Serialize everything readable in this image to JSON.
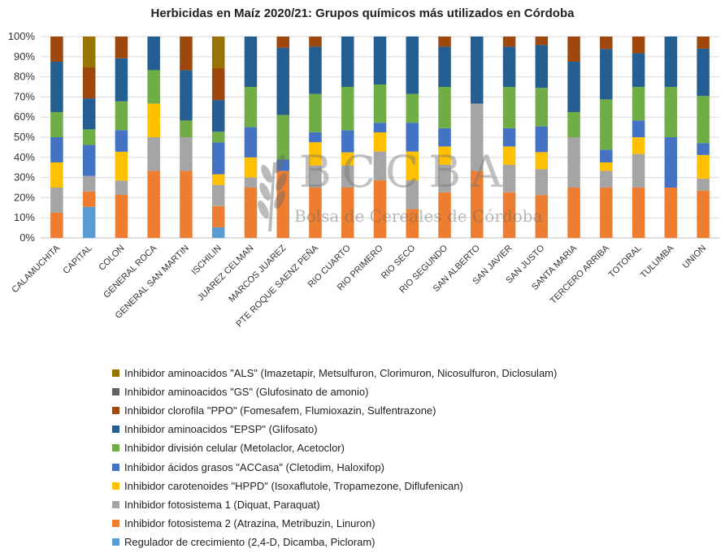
{
  "chart_data": {
    "type": "bar",
    "stacked": true,
    "title": "Herbicidas en Maíz 2020/21: Grupos químicos más utilizados en Córdoba",
    "ylim": [
      0,
      100
    ],
    "yticks": [
      "0%",
      "10%",
      "20%",
      "30%",
      "40%",
      "50%",
      "60%",
      "70%",
      "80%",
      "90%",
      "100%"
    ],
    "categories": [
      "CALAMUCHITA",
      "CAPITAL",
      "COLON",
      "GENERAL ROCA",
      "GENERAL SAN MARTIN",
      "ISCHILIN",
      "JUAREZ CELMAN",
      "MARCOS JUAREZ",
      "PTE ROQUE SAENZ PEÑA",
      "RIO CUARTO",
      "RIO PRIMERO",
      "RIO SECO",
      "RIO SEGUNDO",
      "SAN ALBERTO",
      "SAN JAVIER",
      "SAN JUSTO",
      "SANTA MARIA",
      "TERCERO ARRIBA",
      "TOTORAL",
      "TULUMBA",
      "UNION"
    ],
    "series": [
      {
        "name": "Regulador de crecimiento (2,4-D, Dicamba, Picloram)",
        "color": "#5B9BD5",
        "values": [
          0,
          15.4,
          0,
          0,
          0,
          5.3,
          0,
          0,
          0,
          0,
          0,
          0,
          0,
          0,
          0,
          0,
          0,
          0,
          0,
          0,
          0
        ]
      },
      {
        "name": "Inhibidor fotosistema 2 (Atrazina, Metribuzin, Linuron)",
        "color": "#ED7D31",
        "values": [
          12.5,
          7.7,
          21.4,
          33.3,
          33.3,
          10.5,
          25,
          33.3,
          25,
          25,
          28.6,
          14.3,
          22.7,
          33.3,
          22.7,
          21.3,
          25,
          25,
          25,
          25,
          23.5
        ]
      },
      {
        "name": "Inhibidor fotosistema 1 (Diquat, Paraquat)",
        "color": "#A5A5A5",
        "values": [
          12.5,
          7.7,
          7.1,
          16.7,
          16.7,
          10.5,
          5,
          0,
          11,
          11,
          14.3,
          14.3,
          13.6,
          33.4,
          13.6,
          12.8,
          25,
          8.3,
          16.7,
          0,
          5.9
        ]
      },
      {
        "name": "Inhibidor carotenoides \"HPPD\" (Isoxaflutole, Tropamezone, Diflufenican)",
        "color": "#FFC000",
        "values": [
          12.5,
          0,
          14.3,
          16.7,
          0,
          5.3,
          10,
          0,
          11.5,
          6.5,
          9.5,
          14.3,
          9.1,
          0,
          9.1,
          8.5,
          0,
          4.2,
          8.3,
          0,
          11.8
        ]
      },
      {
        "name": "Inhibidor ácidos grasos \"ACCasa\" (Cletodim, Haloxifop)",
        "color": "#4472C4",
        "values": [
          12.5,
          15.4,
          10.7,
          0,
          0,
          15.8,
          15,
          5.6,
          5,
          11,
          4.8,
          14.3,
          9.1,
          0,
          9.1,
          12.8,
          0,
          6.3,
          8.3,
          25,
          5.9
        ]
      },
      {
        "name": "Inhibidor división celular (Metolaclor, Acetoclor)",
        "color": "#70AD47",
        "values": [
          12.5,
          7.7,
          14.3,
          16.6,
          8.3,
          5.3,
          20,
          22.2,
          19,
          21.5,
          19,
          14.3,
          20.5,
          0,
          20.5,
          19.1,
          12.5,
          25,
          16.7,
          25,
          23.4
        ]
      },
      {
        "name": "Inhibidor aminoacidos \"EPSP\" (Glifosato)",
        "color": "#255E91",
        "values": [
          25,
          15.4,
          21.4,
          16.7,
          25,
          15.8,
          25,
          33.3,
          23.5,
          25,
          23.8,
          28.5,
          20,
          33.3,
          20,
          21.3,
          25,
          25,
          16.7,
          25,
          23.5
        ]
      },
      {
        "name": "Inhibidor clorofila \"PPO\" (Fomesafem, Flumioxazin, Sulfentrazone)",
        "color": "#9E480E",
        "values": [
          12.5,
          15.4,
          10.8,
          0,
          16.7,
          15.8,
          0,
          5.6,
          5,
          0,
          0,
          0,
          5,
          0,
          5,
          4.2,
          12.5,
          6.2,
          8.3,
          0,
          6
        ]
      },
      {
        "name": "Inhibidor aminoacidos \"GS\" (Glufosinato de amonio)",
        "color": "#636363",
        "values": [
          0,
          0,
          0,
          0,
          0,
          0,
          0,
          0,
          0,
          0,
          0,
          0,
          0,
          0,
          0,
          0,
          0,
          0,
          0,
          0,
          0
        ]
      },
      {
        "name": "Inhibidor aminoacidos \"ALS\" (Imazetapir, Metsulfuron, Clorimuron, Nicosulfuron, Diclosulam)",
        "color": "#997300",
        "values": [
          0,
          15.3,
          0,
          0,
          0,
          15.7,
          0,
          0,
          0,
          0,
          0,
          0,
          0,
          0,
          0,
          0,
          0,
          0,
          0,
          0,
          0
        ]
      }
    ]
  },
  "watermark": {
    "text": "BCCBA",
    "subtitle": "Bolsa de Cereales de Córdoba"
  }
}
